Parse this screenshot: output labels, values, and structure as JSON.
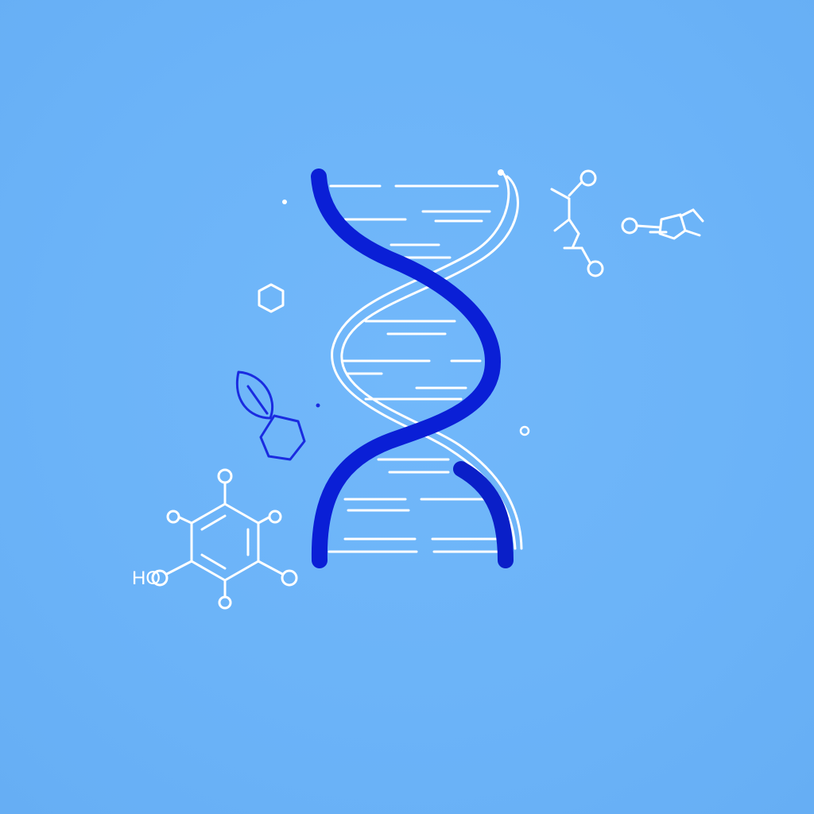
{
  "illustration": {
    "background_color": "#6cb4f8",
    "helix_strand_color": "#0a1fd6",
    "line_color": "#ffffff",
    "leaf_color": "#1a2be0",
    "molecule_label": "HO"
  }
}
